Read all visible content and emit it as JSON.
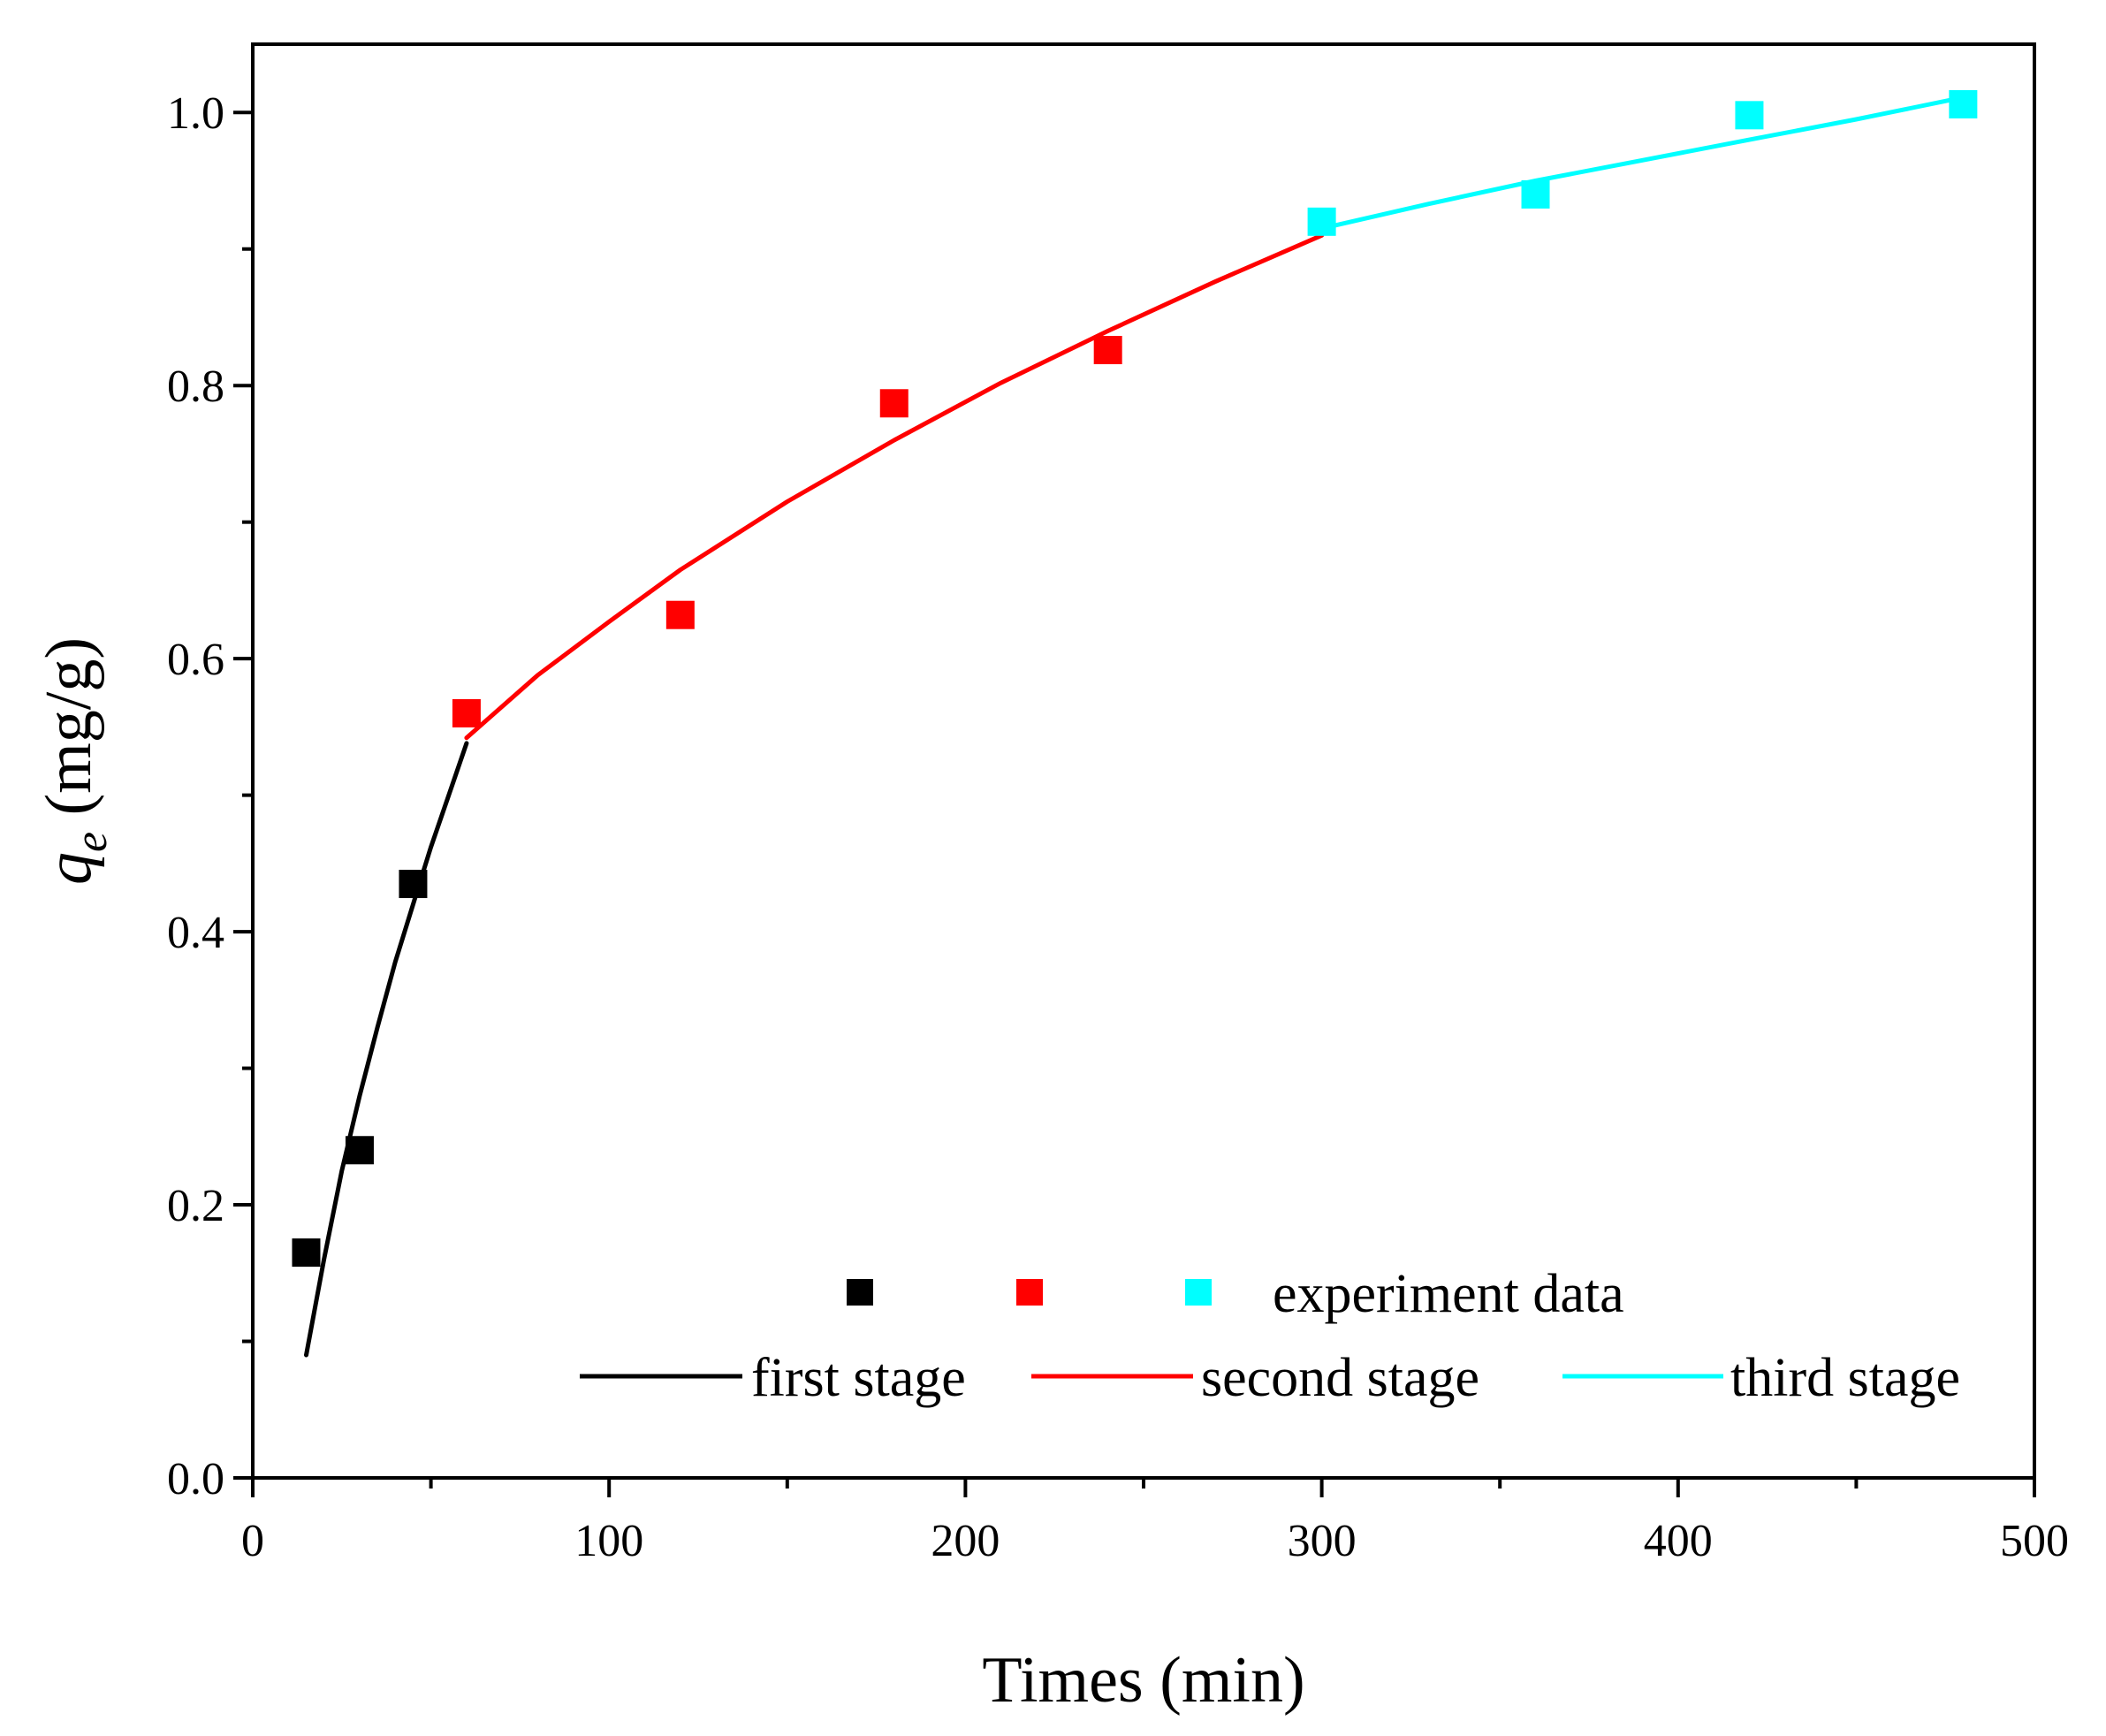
{
  "chart_data": {
    "type": "scatter",
    "title": "",
    "xlabel": "Times (min)",
    "ylabel": {
      "symbol": "q",
      "subscript": "e",
      "unit": " (mg/g)"
    },
    "xlim": [
      0,
      500
    ],
    "ylim": [
      0.0,
      1.05
    ],
    "x_ticks": [
      0,
      100,
      200,
      300,
      400,
      500
    ],
    "x_tick_labels": [
      "0",
      "100",
      "200",
      "300",
      "400",
      "500"
    ],
    "x_minor_ticks": [
      50,
      150,
      250,
      350,
      450
    ],
    "y_ticks": [
      0.0,
      0.2,
      0.4,
      0.6,
      0.8,
      1.0
    ],
    "y_tick_labels": [
      "0.0",
      "0.2",
      "0.4",
      "0.6",
      "0.8",
      "1.0"
    ],
    "y_minor_ticks": [
      0.1,
      0.3,
      0.5,
      0.7,
      0.9
    ],
    "grid": false,
    "legend_position": "bottom-right",
    "series": [
      {
        "name": "first stage",
        "color": "#000000",
        "points": [
          [
            15,
            0.165
          ],
          [
            30,
            0.24
          ],
          [
            45,
            0.435
          ]
        ],
        "fit": [
          [
            15,
            0.09
          ],
          [
            20,
            0.16
          ],
          [
            25,
            0.225
          ],
          [
            30,
            0.28
          ],
          [
            35,
            0.33
          ],
          [
            40,
            0.378
          ],
          [
            45,
            0.42
          ],
          [
            50,
            0.462
          ],
          [
            55,
            0.5
          ],
          [
            60,
            0.538
          ]
        ]
      },
      {
        "name": "second stage",
        "color": "#ff0000",
        "points": [
          [
            60,
            0.56
          ],
          [
            120,
            0.632
          ],
          [
            180,
            0.787
          ],
          [
            240,
            0.826
          ]
        ],
        "fit": [
          [
            60,
            0.542
          ],
          [
            80,
            0.588
          ],
          [
            100,
            0.627
          ],
          [
            120,
            0.665
          ],
          [
            150,
            0.715
          ],
          [
            180,
            0.76
          ],
          [
            210,
            0.802
          ],
          [
            240,
            0.84
          ],
          [
            270,
            0.876
          ],
          [
            300,
            0.91
          ]
        ]
      },
      {
        "name": "third stage",
        "color": "#00ffff",
        "points": [
          [
            300,
            0.92
          ],
          [
            360,
            0.94
          ],
          [
            420,
            0.998
          ],
          [
            480,
            1.006
          ]
        ],
        "fit": [
          [
            300,
            0.915
          ],
          [
            330,
            0.933
          ],
          [
            360,
            0.95
          ],
          [
            390,
            0.965
          ],
          [
            420,
            0.98
          ],
          [
            450,
            0.995
          ],
          [
            480,
            1.011
          ]
        ]
      }
    ],
    "legend": {
      "marker_label": "experiment data",
      "line_labels": [
        "first stage",
        "second stage",
        "third stage"
      ]
    }
  }
}
